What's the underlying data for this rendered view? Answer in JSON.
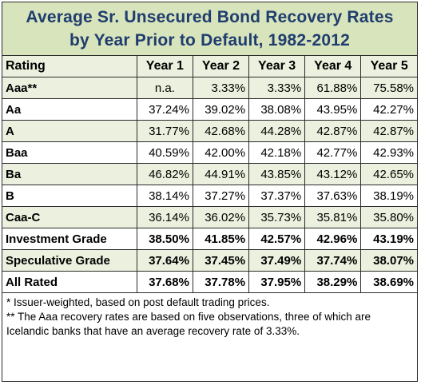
{
  "title": {
    "line1": "Average Sr. Unsecured Bond Recovery Rates",
    "line2": "by Year Prior to Default, 1982-2012"
  },
  "table": {
    "headers": [
      "Rating",
      "Year 1",
      "Year 2",
      "Year 3",
      "Year 4",
      "Year 5"
    ],
    "rows": [
      {
        "label": "Aaa**",
        "values": [
          "n.a.",
          "3.33%",
          "3.33%",
          "61.88%",
          "75.58%"
        ]
      },
      {
        "label": "Aa",
        "values": [
          "37.24%",
          "39.02%",
          "38.08%",
          "43.95%",
          "42.27%"
        ]
      },
      {
        "label": "A",
        "values": [
          "31.77%",
          "42.68%",
          "44.28%",
          "42.87%",
          "42.87%"
        ]
      },
      {
        "label": "Baa",
        "values": [
          "40.59%",
          "42.00%",
          "42.18%",
          "42.77%",
          "42.93%"
        ]
      },
      {
        "label": "Ba",
        "values": [
          "46.82%",
          "44.91%",
          "43.85%",
          "43.12%",
          "42.65%"
        ]
      },
      {
        "label": "B",
        "values": [
          "38.14%",
          "37.27%",
          "37.37%",
          "37.63%",
          "38.19%"
        ]
      },
      {
        "label": "Caa-C",
        "values": [
          "36.14%",
          "36.02%",
          "35.73%",
          "35.81%",
          "35.80%"
        ]
      },
      {
        "label": "Investment Grade",
        "values": [
          "38.50%",
          "41.85%",
          "42.57%",
          "42.96%",
          "43.19%"
        ]
      },
      {
        "label": "Speculative Grade",
        "values": [
          "37.64%",
          "37.45%",
          "37.49%",
          "37.74%",
          "38.07%"
        ]
      },
      {
        "label": "All Rated",
        "values": [
          "37.68%",
          "37.78%",
          "37.95%",
          "38.29%",
          "38.69%"
        ]
      }
    ]
  },
  "notes": {
    "note1": "* Issuer-weighted, based on post default trading prices.",
    "note2": "** The Aaa recovery rates are based on five observations, three of which are Icelandic banks that have an average recovery rate of 3.33%."
  },
  "colors": {
    "title_bg": "#d8e4bc",
    "title_text": "#1f3d6e",
    "header_bg": "#ebf1de",
    "border": "#2b2b2b"
  }
}
